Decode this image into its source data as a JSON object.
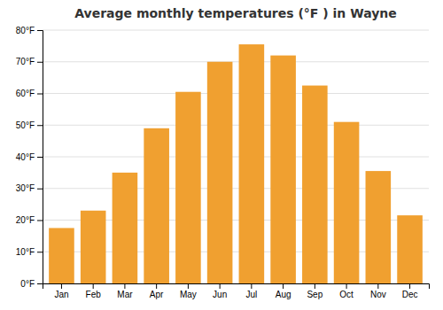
{
  "chart_data": {
    "type": "bar",
    "title": "Average monthly temperatures (°F ) in Wayne",
    "categories": [
      "Jan",
      "Feb",
      "Mar",
      "Apr",
      "May",
      "Jun",
      "Jul",
      "Aug",
      "Sep",
      "Oct",
      "Nov",
      "Dec"
    ],
    "values": [
      17.5,
      23,
      35,
      49,
      60.5,
      70,
      75.5,
      72,
      62.5,
      51,
      35.5,
      21.5
    ],
    "color": "#F0A030",
    "ylim": [
      0,
      80
    ],
    "yticks": [
      {
        "value": 0,
        "label": "0°F"
      },
      {
        "value": 10,
        "label": "10°F"
      },
      {
        "value": 20,
        "label": "20°F"
      },
      {
        "value": 30,
        "label": "30°F"
      },
      {
        "value": 40,
        "label": "40°F"
      },
      {
        "value": 50,
        "label": "50°F"
      },
      {
        "value": 60,
        "label": "60°F"
      },
      {
        "value": 70,
        "label": "70°F"
      },
      {
        "value": 80,
        "label": "80°F"
      }
    ],
    "grid": true
  }
}
